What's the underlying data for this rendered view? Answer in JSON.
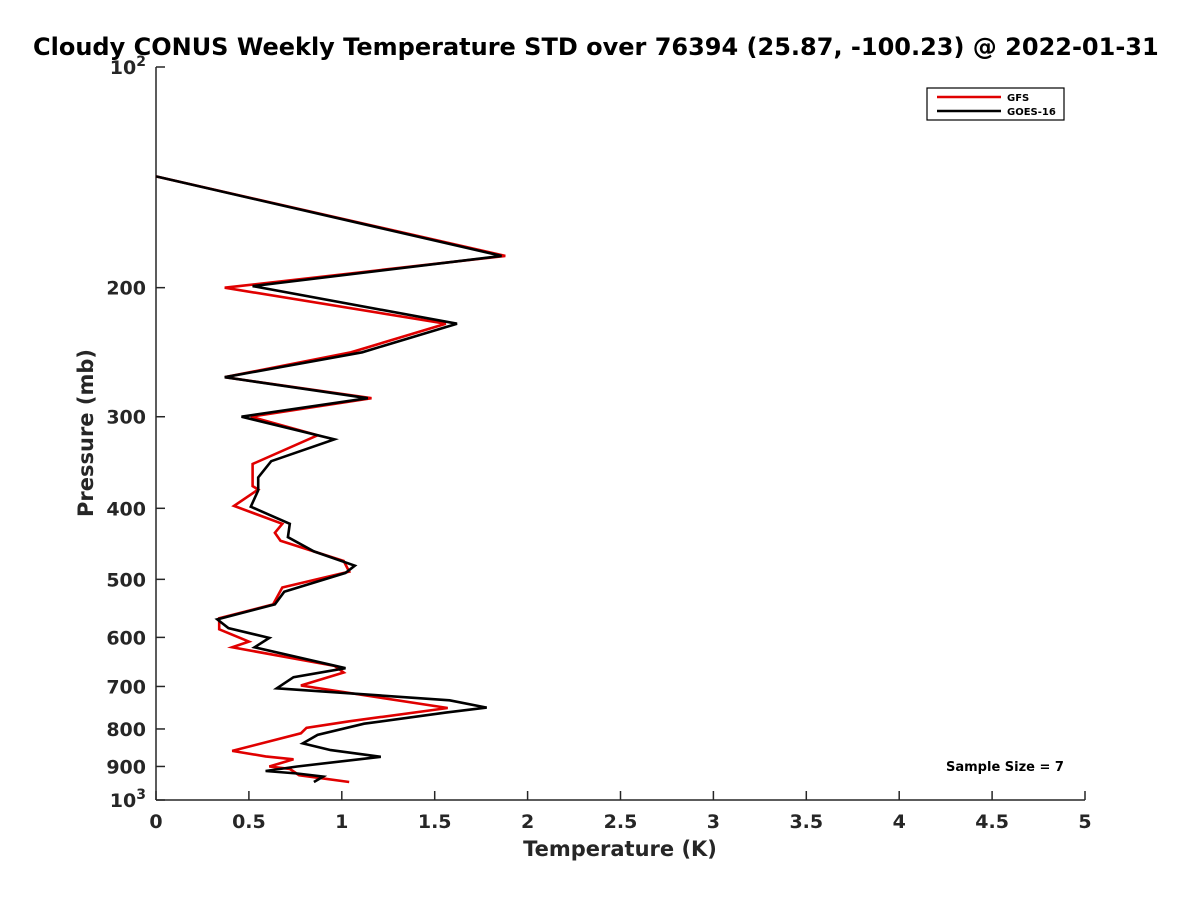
{
  "chart_data": {
    "type": "line",
    "title": "Cloudy CONUS Weekly Temperature STD over 76394 (25.87, -100.23) @ 2022-01-31",
    "xlabel": "Temperature (K)",
    "ylabel": "Pressure (mb)",
    "xlim": [
      0,
      5
    ],
    "ylim": [
      100,
      1000
    ],
    "y_scale": "log",
    "y_reversed": true,
    "x_ticks": [
      0,
      0.5,
      1,
      1.5,
      2,
      2.5,
      3,
      3.5,
      4,
      4.5,
      5
    ],
    "x_tick_labels": [
      "0",
      "0.5",
      "1",
      "1.5",
      "2",
      "2.5",
      "3",
      "3.5",
      "4",
      "4.5",
      "5"
    ],
    "y_ticks": [
      {
        "value": 100,
        "base": "10",
        "exp": "2"
      },
      {
        "value": 200,
        "label": "200"
      },
      {
        "value": 300,
        "label": "300"
      },
      {
        "value": 400,
        "label": "400"
      },
      {
        "value": 500,
        "label": "500"
      },
      {
        "value": 600,
        "label": "600"
      },
      {
        "value": 700,
        "label": "700"
      },
      {
        "value": 800,
        "label": "800"
      },
      {
        "value": 900,
        "label": "900"
      },
      {
        "value": 1000,
        "base": "10",
        "exp": "3"
      }
    ],
    "grid": false,
    "legend_position": "top-right",
    "annotation": "Sample Size = 7",
    "series": [
      {
        "name": "GFS",
        "color": "#e00000",
        "points": [
          [
            0.0,
            141
          ],
          [
            1.88,
            181
          ],
          [
            0.37,
            200
          ],
          [
            1.56,
            224
          ],
          [
            1.05,
            245
          ],
          [
            0.37,
            265
          ],
          [
            1.16,
            283
          ],
          [
            0.51,
            300
          ],
          [
            0.87,
            318
          ],
          [
            0.52,
            348
          ],
          [
            0.52,
            373
          ],
          [
            0.55,
            377
          ],
          [
            0.42,
            397
          ],
          [
            0.68,
            420
          ],
          [
            0.64,
            432
          ],
          [
            0.67,
            443
          ],
          [
            1.01,
            472
          ],
          [
            1.04,
            488
          ],
          [
            0.68,
            513
          ],
          [
            0.63,
            541
          ],
          [
            0.34,
            565
          ],
          [
            0.34,
            585
          ],
          [
            0.5,
            608
          ],
          [
            0.41,
            619
          ],
          [
            0.96,
            656
          ],
          [
            1.01,
            670
          ],
          [
            0.78,
            698
          ],
          [
            1.57,
            749
          ],
          [
            1.04,
            781
          ],
          [
            0.81,
            797
          ],
          [
            0.78,
            811
          ],
          [
            0.41,
            857
          ],
          [
            0.59,
            872
          ],
          [
            0.74,
            880
          ],
          [
            0.61,
            900
          ],
          [
            0.72,
            907
          ],
          [
            0.77,
            925
          ],
          [
            1.04,
            945
          ]
        ]
      },
      {
        "name": "GOES-16",
        "color": "#000000",
        "points": [
          [
            0.0,
            141
          ],
          [
            1.86,
            181
          ],
          [
            0.52,
            199
          ],
          [
            1.62,
            224
          ],
          [
            1.11,
            245
          ],
          [
            0.37,
            265
          ],
          [
            1.14,
            283
          ],
          [
            0.46,
            300
          ],
          [
            0.96,
            322
          ],
          [
            0.62,
            345
          ],
          [
            0.55,
            363
          ],
          [
            0.55,
            378
          ],
          [
            0.51,
            398
          ],
          [
            0.72,
            420
          ],
          [
            0.71,
            438
          ],
          [
            0.85,
            458
          ],
          [
            1.07,
            479
          ],
          [
            1.02,
            490
          ],
          [
            0.69,
            520
          ],
          [
            0.64,
            541
          ],
          [
            0.33,
            567
          ],
          [
            0.39,
            583
          ],
          [
            0.61,
            601
          ],
          [
            0.53,
            619
          ],
          [
            1.02,
            661
          ],
          [
            0.74,
            680
          ],
          [
            0.65,
            704
          ],
          [
            1.58,
            731
          ],
          [
            1.78,
            748
          ],
          [
            1.56,
            760
          ],
          [
            1.12,
            787
          ],
          [
            0.87,
            815
          ],
          [
            0.79,
            837
          ],
          [
            0.94,
            855
          ],
          [
            1.21,
            873
          ],
          [
            0.76,
            900
          ],
          [
            0.59,
            913
          ],
          [
            0.76,
            920
          ],
          [
            0.9,
            929
          ],
          [
            0.85,
            945
          ]
        ]
      }
    ]
  }
}
